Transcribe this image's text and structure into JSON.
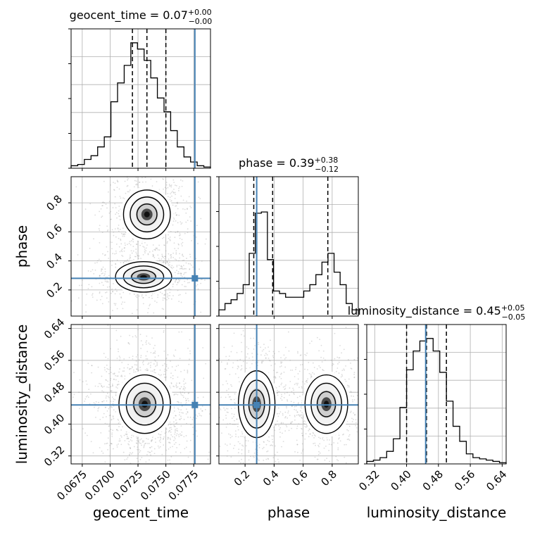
{
  "chart_data": {
    "type": "corner",
    "parameters": [
      {
        "name": "geocent_time",
        "range": [
          0.0665,
          0.079
        ],
        "ticks": [
          "0.0675",
          "0.0700",
          "0.0725",
          "0.0750",
          "0.0775"
        ],
        "tick_values": [
          0.0675,
          0.07,
          0.0725,
          0.075,
          0.0775
        ],
        "title_prefix": "geocent_time = 0.07",
        "title_sup": "+0.00",
        "title_sub": "−0.00",
        "quantiles": [
          0.072,
          0.0733,
          0.075
        ],
        "truth": 0.0776
      },
      {
        "name": "phase",
        "range": [
          0.02,
          0.98
        ],
        "ticks": [
          "0.2",
          "0.4",
          "0.6",
          "0.8"
        ],
        "tick_values": [
          0.2,
          0.4,
          0.6,
          0.8
        ],
        "title_prefix": "phase = 0.39",
        "title_sup": "+0.38",
        "title_sub": "−0.12",
        "quantiles": [
          0.26,
          0.39,
          0.77
        ],
        "truth": 0.28
      },
      {
        "name": "luminosity_distance",
        "range": [
          0.3,
          0.65
        ],
        "ticks": [
          "0.32",
          "0.40",
          "0.48",
          "0.56",
          "0.64"
        ],
        "tick_values": [
          0.32,
          0.4,
          0.48,
          0.56,
          0.64
        ],
        "title_prefix": "luminosity_distance = 0.45",
        "title_sup": "+0.05",
        "title_sub": "−0.05",
        "quantiles": [
          0.4,
          0.45,
          0.5
        ],
        "truth": 0.448
      }
    ],
    "hist_1d": {
      "geocent_time": [
        0.02,
        0.03,
        0.07,
        0.1,
        0.17,
        0.25,
        0.53,
        0.68,
        0.82,
        1.0,
        0.95,
        0.86,
        0.72,
        0.56,
        0.45,
        0.3,
        0.17,
        0.09,
        0.05,
        0.02,
        0.01
      ],
      "phase": [
        0.05,
        0.1,
        0.13,
        0.18,
        0.25,
        0.5,
        0.82,
        0.83,
        0.45,
        0.2,
        0.18,
        0.15,
        0.15,
        0.15,
        0.2,
        0.25,
        0.33,
        0.43,
        0.5,
        0.35,
        0.25,
        0.1,
        0.05
      ],
      "luminosity_distance": [
        0.02,
        0.03,
        0.05,
        0.1,
        0.2,
        0.45,
        0.75,
        0.9,
        0.98,
        1.0,
        0.9,
        0.73,
        0.5,
        0.3,
        0.18,
        0.08,
        0.05,
        0.04,
        0.03,
        0.02,
        0.01
      ]
    },
    "grid": true,
    "truth_color": "#4682b4",
    "line_color": "#000000"
  }
}
